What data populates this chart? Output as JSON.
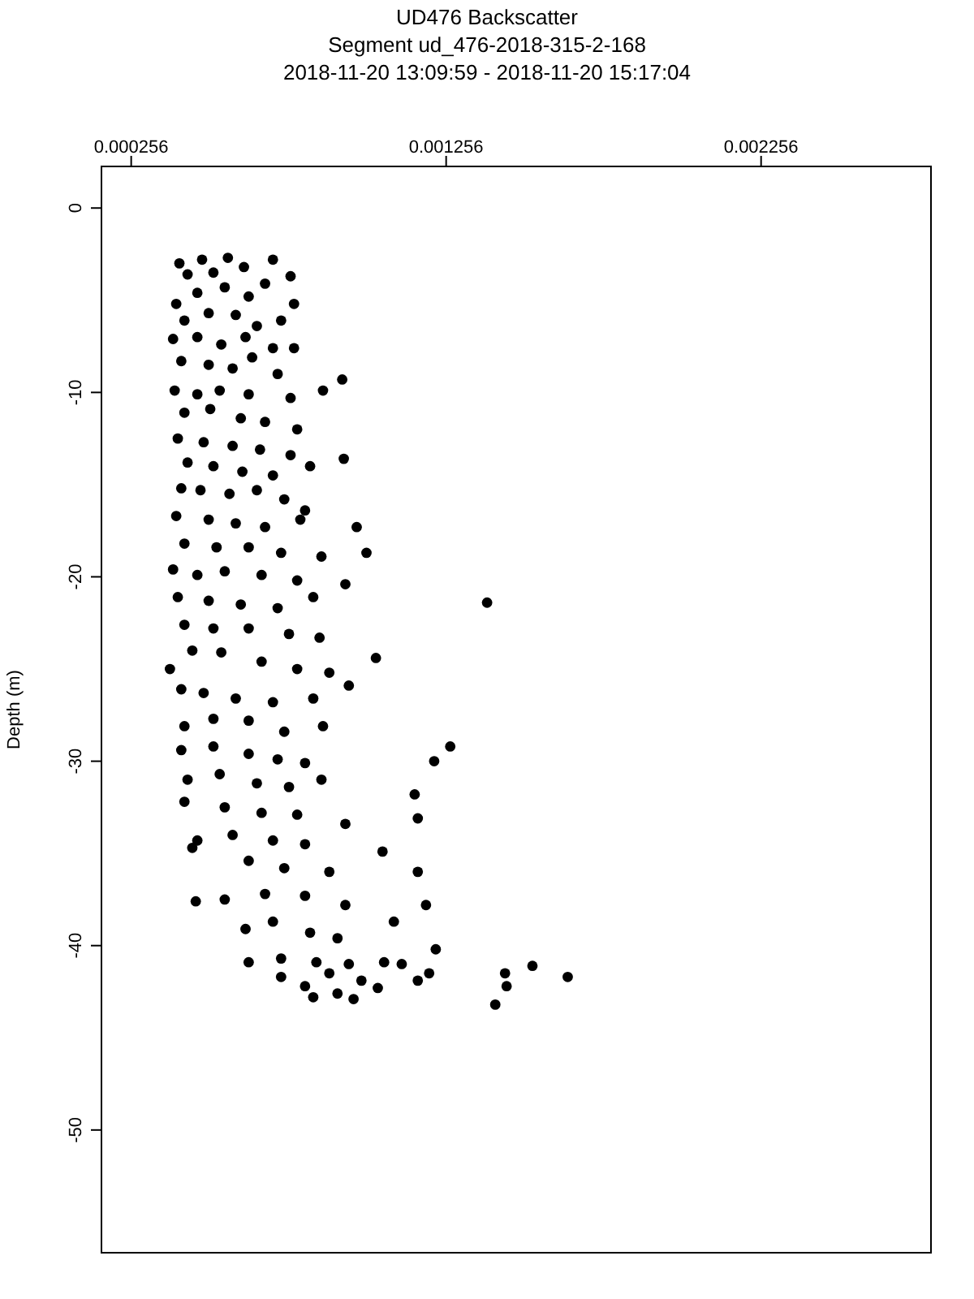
{
  "chart_data": {
    "type": "scatter",
    "title": "UD476 Backscatter",
    "subtitle": "Segment ud_476-2018-315-2-168\n2018-11-20 13:09:59 - 2018-11-20 15:17:04",
    "ylabel": "Depth (m)",
    "xlim": [
      0.000159,
      0.002798
    ],
    "xticks": [
      0.000256,
      0.001256,
      0.002256
    ],
    "ylim": [
      -56.7,
      2.3
    ],
    "yticks": [
      0,
      -10,
      -20,
      -30,
      -40,
      -50
    ],
    "grid": false,
    "marker": "circle",
    "series": [
      {
        "color": "#000000",
        "x": [
          0.000409,
          0.000481,
          0.000563,
          0.000706,
          0.000435,
          0.000517,
          0.000614,
          0.000762,
          0.000399,
          0.000466,
          0.000553,
          0.000629,
          0.000681,
          0.000773,
          0.000425,
          0.000502,
          0.000588,
          0.000655,
          0.000732,
          0.000389,
          0.000466,
          0.000542,
          0.000619,
          0.000706,
          0.000773,
          0.000415,
          0.000502,
          0.000578,
          0.00064,
          0.000721,
          0.000926,
          0.000394,
          0.000466,
          0.000537,
          0.000629,
          0.000762,
          0.000865,
          0.000425,
          0.000507,
          0.000604,
          0.000681,
          0.000783,
          0.000404,
          0.000486,
          0.000578,
          0.000665,
          0.000762,
          0.000931,
          0.000435,
          0.000517,
          0.000609,
          0.000706,
          0.000824,
          0.000415,
          0.000476,
          0.000568,
          0.000655,
          0.000742,
          0.000808,
          0.000399,
          0.000502,
          0.000588,
          0.000681,
          0.000793,
          0.000972,
          0.000425,
          0.000527,
          0.000629,
          0.000732,
          0.00086,
          0.001003,
          0.000389,
          0.000466,
          0.000553,
          0.00067,
          0.000783,
          0.000936,
          0.000404,
          0.000502,
          0.000604,
          0.000721,
          0.000834,
          0.001386,
          0.000425,
          0.000517,
          0.000629,
          0.000757,
          0.000854,
          0.000379,
          0.00045,
          0.000542,
          0.00067,
          0.000783,
          0.000885,
          0.001033,
          0.000415,
          0.000486,
          0.000588,
          0.000706,
          0.000834,
          0.000947,
          0.000425,
          0.000517,
          0.000629,
          0.000742,
          0.000865,
          0.000415,
          0.000517,
          0.000629,
          0.000721,
          0.000808,
          0.001269,
          0.001218,
          0.000435,
          0.000537,
          0.000655,
          0.000757,
          0.00086,
          0.001156,
          0.000425,
          0.000553,
          0.00067,
          0.000783,
          0.001166,
          0.000466,
          0.000578,
          0.000706,
          0.000808,
          0.000936,
          0.001054,
          0.00045,
          0.000629,
          0.000742,
          0.000885,
          0.001166,
          0.000461,
          0.000553,
          0.000681,
          0.000808,
          0.000936,
          0.000619,
          0.000706,
          0.000824,
          0.000911,
          0.00109,
          0.001192,
          0.000629,
          0.000732,
          0.000844,
          0.000947,
          0.001059,
          0.001223,
          0.000732,
          0.000808,
          0.000885,
          0.000987,
          0.001115,
          0.001202,
          0.000834,
          0.000911,
          0.001039,
          0.001166,
          0.000962,
          0.001412,
          0.001443,
          0.00153,
          0.001642,
          0.001448
        ],
        "values": [
          -3.0,
          -2.8,
          -2.7,
          -2.8,
          -3.6,
          -3.5,
          -3.2,
          -3.7,
          -5.2,
          -4.6,
          -4.3,
          -4.8,
          -4.1,
          -5.2,
          -6.1,
          -5.7,
          -5.8,
          -6.4,
          -6.1,
          -7.1,
          -7.0,
          -7.4,
          -7.0,
          -7.6,
          -7.6,
          -8.3,
          -8.5,
          -8.7,
          -8.1,
          -9.0,
          -9.3,
          -9.9,
          -10.1,
          -9.9,
          -10.1,
          -10.3,
          -9.9,
          -11.1,
          -10.9,
          -11.4,
          -11.6,
          -12.0,
          -12.5,
          -12.7,
          -12.9,
          -13.1,
          -13.4,
          -13.6,
          -13.8,
          -14.0,
          -14.3,
          -14.5,
          -14.0,
          -15.2,
          -15.3,
          -15.5,
          -15.3,
          -15.8,
          -16.4,
          -16.7,
          -16.9,
          -17.1,
          -17.3,
          -16.9,
          -17.3,
          -18.2,
          -18.4,
          -18.4,
          -18.7,
          -18.9,
          -18.7,
          -19.6,
          -19.9,
          -19.7,
          -19.9,
          -20.2,
          -20.4,
          -21.1,
          -21.3,
          -21.5,
          -21.7,
          -21.1,
          -21.4,
          -22.6,
          -22.8,
          -22.8,
          -23.1,
          -23.3,
          -25.0,
          -24.0,
          -24.1,
          -24.6,
          -25.0,
          -25.2,
          -24.4,
          -26.1,
          -26.3,
          -26.6,
          -26.8,
          -26.6,
          -25.9,
          -28.1,
          -27.7,
          -27.8,
          -28.4,
          -28.1,
          -29.4,
          -29.2,
          -29.6,
          -29.9,
          -30.1,
          -29.2,
          -30.0,
          -31.0,
          -30.7,
          -31.2,
          -31.4,
          -31.0,
          -31.8,
          -32.2,
          -32.5,
          -32.8,
          -32.9,
          -33.1,
          -34.3,
          -34.0,
          -34.3,
          -34.5,
          -33.4,
          -34.9,
          -34.7,
          -35.4,
          -35.8,
          -36.0,
          -36.0,
          -37.6,
          -37.5,
          -37.2,
          -37.3,
          -37.8,
          -39.1,
          -38.7,
          -39.3,
          -39.6,
          -38.7,
          -37.8,
          -40.9,
          -40.7,
          -40.9,
          -41.0,
          -40.9,
          -40.2,
          -41.7,
          -42.2,
          -41.5,
          -41.9,
          -41.0,
          -41.5,
          -42.8,
          -42.6,
          -42.3,
          -41.9,
          -42.9,
          -43.2,
          -41.5,
          -41.1,
          -41.7,
          -42.2
        ]
      }
    ]
  }
}
